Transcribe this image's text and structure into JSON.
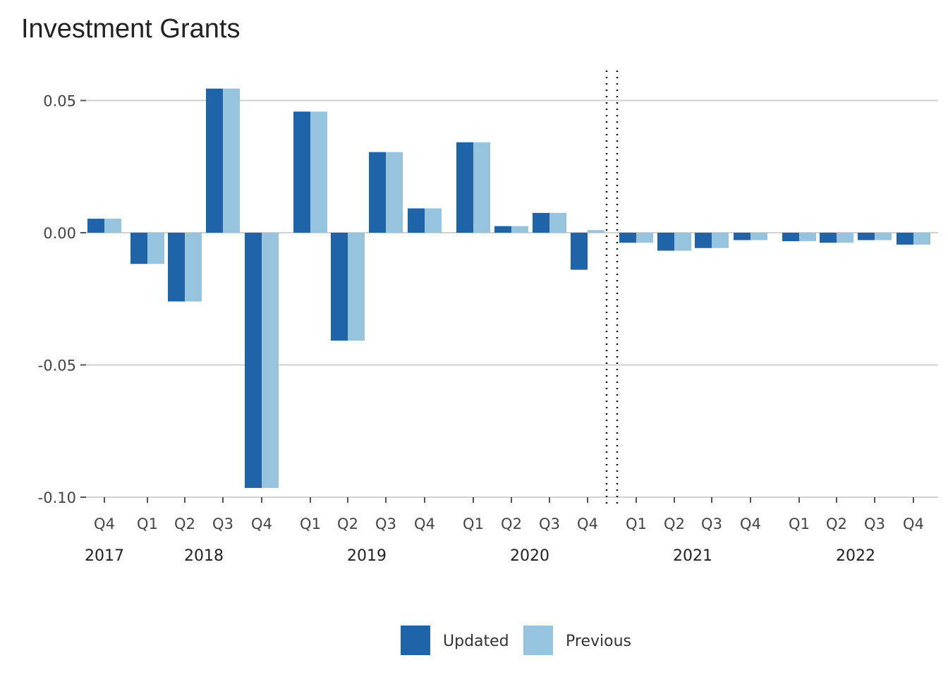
{
  "chart_data": {
    "type": "bar",
    "title": "Investment Grants",
    "xlabel": "",
    "ylabel": "",
    "ylim": [
      -0.1,
      0.06
    ],
    "yticks": [
      0.05,
      0.0,
      -0.05,
      -0.1
    ],
    "ytick_labels": [
      "0.05",
      "0.00",
      "-0.05",
      "-0.10"
    ],
    "grid": true,
    "legend_position": "bottom",
    "divider": "between 2020 Q4 and 2021 Q1",
    "categories": [
      {
        "quarter": "Q4",
        "year": "2017"
      },
      {
        "quarter": "Q1",
        "year": "2018"
      },
      {
        "quarter": "Q2",
        "year": "2018"
      },
      {
        "quarter": "Q3",
        "year": "2018"
      },
      {
        "quarter": "Q4",
        "year": "2018"
      },
      {
        "quarter": "Q1",
        "year": "2019"
      },
      {
        "quarter": "Q2",
        "year": "2019"
      },
      {
        "quarter": "Q3",
        "year": "2019"
      },
      {
        "quarter": "Q4",
        "year": "2019"
      },
      {
        "quarter": "Q1",
        "year": "2020"
      },
      {
        "quarter": "Q2",
        "year": "2020"
      },
      {
        "quarter": "Q3",
        "year": "2020"
      },
      {
        "quarter": "Q4",
        "year": "2020"
      },
      {
        "quarter": "Q1",
        "year": "2021"
      },
      {
        "quarter": "Q2",
        "year": "2021"
      },
      {
        "quarter": "Q3",
        "year": "2021"
      },
      {
        "quarter": "Q4",
        "year": "2021"
      },
      {
        "quarter": "Q1",
        "year": "2022"
      },
      {
        "quarter": "Q2",
        "year": "2022"
      },
      {
        "quarter": "Q3",
        "year": "2022"
      },
      {
        "quarter": "Q4",
        "year": "2022"
      }
    ],
    "years": [
      "2017",
      "2018",
      "2019",
      "2020",
      "2021",
      "2022"
    ],
    "series": [
      {
        "name": "Updated",
        "color": "#1f63a8",
        "values": [
          0.0053,
          -0.0118,
          -0.026,
          0.0545,
          -0.0965,
          0.0458,
          -0.0408,
          0.0305,
          0.0092,
          0.0342,
          0.0025,
          0.0075,
          -0.014,
          -0.0038,
          -0.0068,
          -0.0058,
          -0.0028,
          -0.0032,
          -0.0038,
          -0.0028,
          -0.0045
        ]
      },
      {
        "name": "Previous",
        "color": "#96c3de",
        "values": [
          0.0053,
          -0.0118,
          -0.026,
          0.0545,
          -0.0965,
          0.0458,
          -0.0408,
          0.0305,
          0.0092,
          0.0342,
          0.0025,
          0.0075,
          0.001,
          -0.0038,
          -0.0068,
          -0.0058,
          -0.0028,
          -0.0032,
          -0.0038,
          -0.0028,
          -0.0045
        ]
      }
    ]
  }
}
